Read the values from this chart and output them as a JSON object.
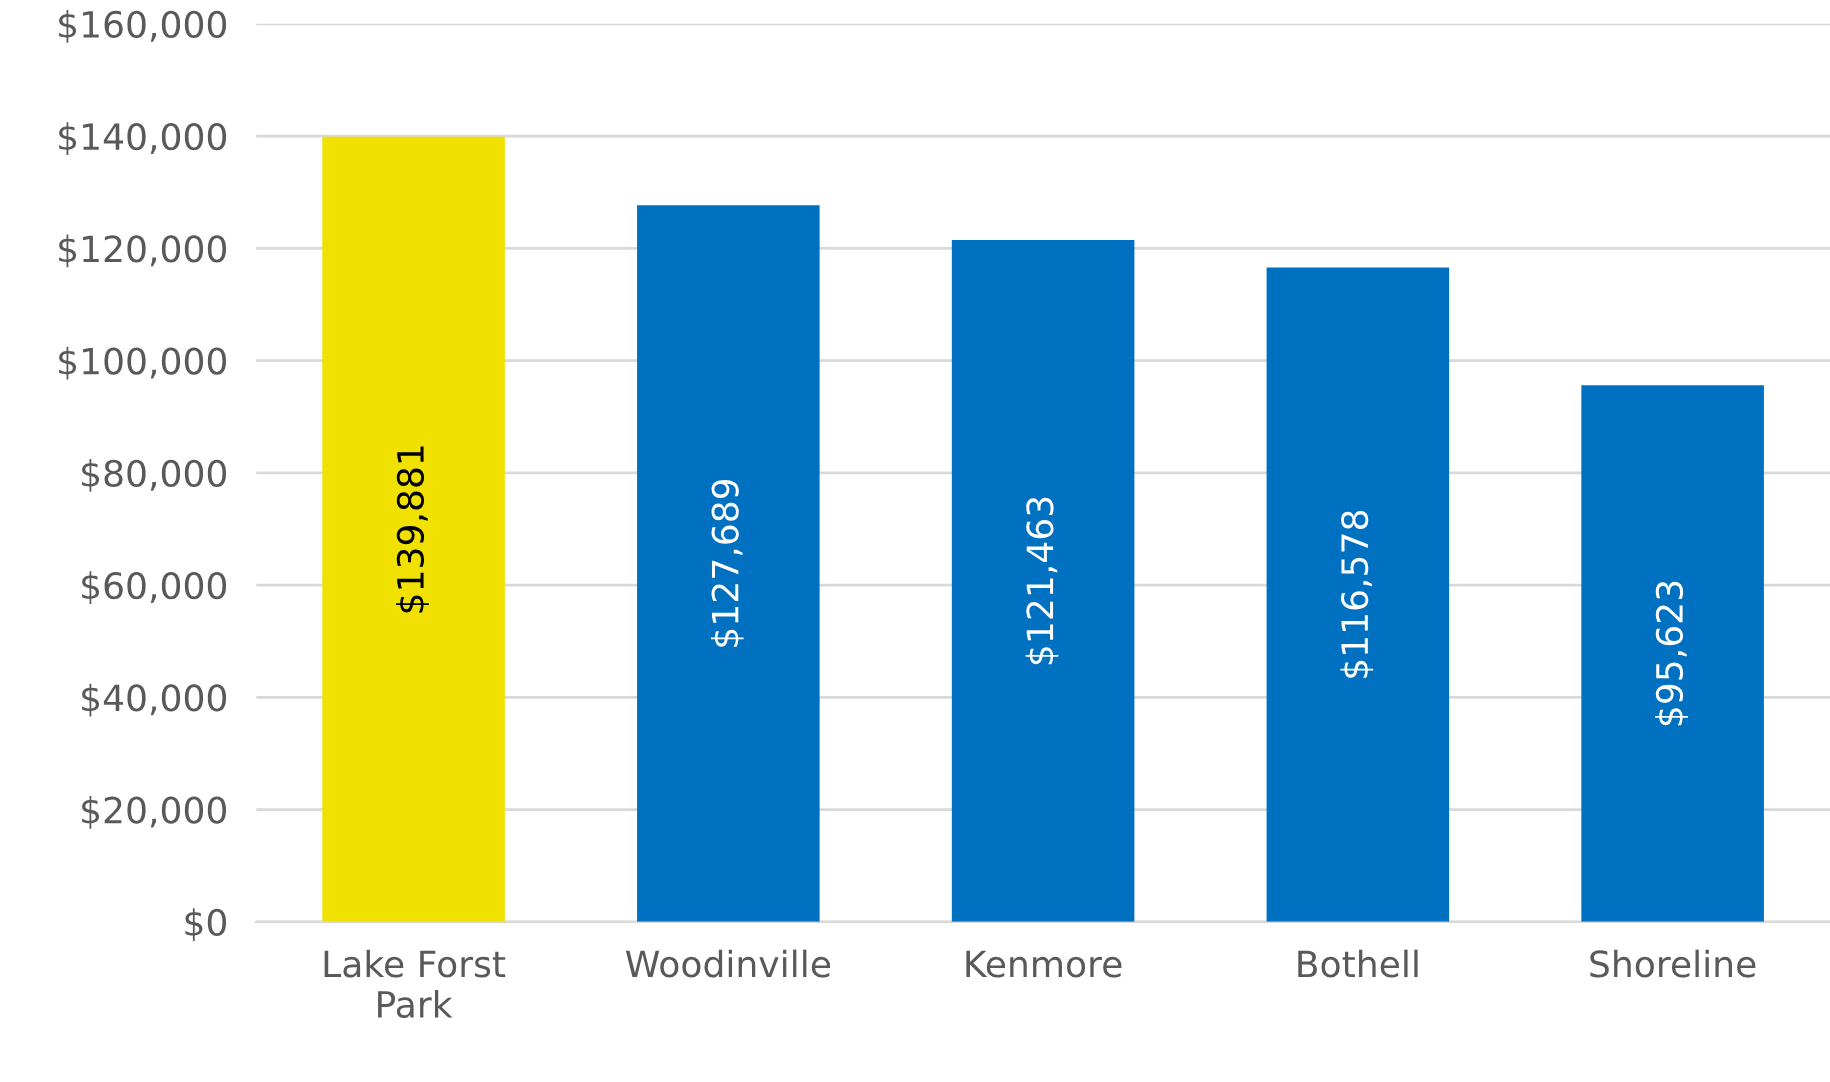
{
  "chart_data": {
    "type": "bar",
    "categories": [
      "Lake Forst Park",
      "Woodinville",
      "Kenmore",
      "Bothell",
      "Shoreline"
    ],
    "values": [
      139881,
      127689,
      121463,
      116578,
      95623
    ],
    "colors": [
      "#f0e100",
      "#0070c0",
      "#0070c0",
      "#0070c0",
      "#0070c0"
    ],
    "value_labels": [
      "$139,881",
      "$127,689",
      "$121,463",
      "$116,578",
      "$95,623"
    ],
    "ylim": [
      0,
      160000
    ],
    "yticks": [
      {
        "value": 0,
        "label": "$0"
      },
      {
        "value": 20000,
        "label": "$20,000"
      },
      {
        "value": 40000,
        "label": "$40,000"
      },
      {
        "value": 60000,
        "label": "$60,000"
      },
      {
        "value": 80000,
        "label": "$80,000"
      },
      {
        "value": 100000,
        "label": "$100,000"
      },
      {
        "value": 120000,
        "label": "$120,000"
      },
      {
        "value": 140000,
        "label": "$140,000"
      },
      {
        "value": 160000,
        "label": "$160,000"
      }
    ],
    "grid": "y",
    "legend": false
  }
}
